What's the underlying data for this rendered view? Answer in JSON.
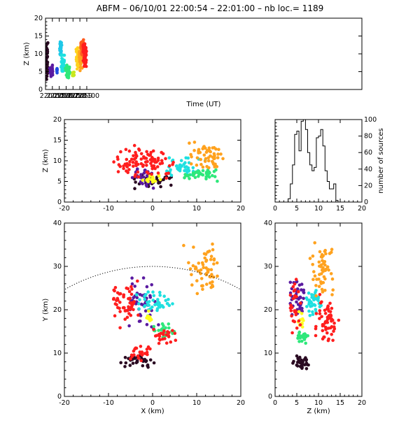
{
  "figure": {
    "title": "ABFM – 06/10/01 22:00:54 – 22:01:00 – nb loc.=    1189"
  },
  "chart_data": [
    {
      "id": "time_height",
      "type": "scatter",
      "xlabel": "Time (UT)",
      "ylabel": "Z (km)",
      "xlim": [
        220054.0,
        220100.0
      ],
      "ylim": [
        0,
        20
      ],
      "xticks": [
        220055,
        220056,
        220057,
        220058,
        220059,
        220100
      ],
      "xtick_labels": [
        "220055",
        "220056",
        "220057",
        "220058",
        "220059",
        "220100"
      ],
      "xtick_pos": [
        1,
        2,
        3,
        4,
        5,
        6
      ],
      "yticks": [
        0,
        5,
        10,
        15,
        20
      ],
      "color_by": "time",
      "colorscale": [
        "#1a0010",
        "#4b0082",
        "#0000ff",
        "#00bfff",
        "#00ffff",
        "#00ff7f",
        "#7cfc00",
        "#ffff00",
        "#ffa500",
        "#ff4500",
        "#ff0000"
      ],
      "clusters": [
        {
          "x": [
            0.0,
            0.38
          ],
          "y": [
            2,
            14
          ],
          "color": "#2a0a22",
          "n": 50
        },
        {
          "x": [
            0.6,
            1.1
          ],
          "y": [
            3.5,
            7
          ],
          "color": "#5a1aa0",
          "n": 35
        },
        {
          "x": [
            1.62,
            1.72
          ],
          "y": [
            4.5,
            6.5
          ],
          "color": "#1f4de0",
          "n": 8
        },
        {
          "x": [
            2.0,
            2.4
          ],
          "y": [
            9,
            14
          ],
          "color": "#1fc8e8",
          "n": 40
        },
        {
          "x": [
            2.2,
            2.8
          ],
          "y": [
            5,
            10
          ],
          "color": "#1ee0e0",
          "n": 40
        },
        {
          "x": [
            2.8,
            3.6
          ],
          "y": [
            3,
            7
          ],
          "color": "#2ee87a",
          "n": 45
        },
        {
          "x": [
            3.8,
            4.2
          ],
          "y": [
            3,
            6
          ],
          "color": "#c8e81e",
          "n": 10
        },
        {
          "x": [
            4.4,
            5.0
          ],
          "y": [
            5,
            12
          ],
          "color": "#ffd21e",
          "n": 45
        },
        {
          "x": [
            4.8,
            5.4
          ],
          "y": [
            5,
            13
          ],
          "color": "#ffa21e",
          "n": 45
        },
        {
          "x": [
            5.1,
            5.6
          ],
          "y": [
            9,
            15
          ],
          "color": "#ff5a1e",
          "n": 40
        },
        {
          "x": [
            5.4,
            6.0
          ],
          "y": [
            6,
            14
          ],
          "color": "#ff1e1e",
          "n": 60
        }
      ]
    },
    {
      "id": "x_height",
      "type": "scatter",
      "xlabel": "",
      "ylabel": "Z (km)",
      "xlim": [
        -20,
        20
      ],
      "ylim": [
        0,
        20
      ],
      "xticks": [
        -20,
        -10,
        0,
        10,
        20
      ],
      "yticks": [
        0,
        5,
        10,
        15,
        20
      ],
      "clusters": [
        {
          "x": [
            -6,
            6
          ],
          "y": [
            3,
            7
          ],
          "color": "#2a0a22",
          "n": 35
        },
        {
          "x": [
            -5,
            1
          ],
          "y": [
            3,
            9
          ],
          "color": "#5a1aa0",
          "n": 35
        },
        {
          "x": [
            -3,
            3
          ],
          "y": [
            4,
            7
          ],
          "color": "#ffff1e",
          "n": 15
        },
        {
          "x": [
            2,
            12
          ],
          "y": [
            6,
            11
          ],
          "color": "#1ee0e0",
          "n": 45
        },
        {
          "x": [
            6,
            16
          ],
          "y": [
            5,
            8
          ],
          "color": "#2ee87a",
          "n": 40
        },
        {
          "x": [
            8,
            17
          ],
          "y": [
            8,
            15
          ],
          "color": "#ffa21e",
          "n": 55
        },
        {
          "x": [
            -10,
            6
          ],
          "y": [
            5,
            14
          ],
          "color": "#ff1e1e",
          "n": 95
        }
      ]
    },
    {
      "id": "height_histogram",
      "type": "line",
      "xlabel": "",
      "ylabel": "number of sources",
      "xlim": [
        0,
        20
      ],
      "ylim": [
        0,
        100
      ],
      "xticks": [
        0,
        5,
        10,
        15,
        20
      ],
      "yticks": [
        0,
        20,
        40,
        60,
        80,
        100
      ],
      "bin_width": 0.5,
      "bin_start": 3.0,
      "values": [
        4,
        22,
        45,
        82,
        86,
        62,
        98,
        100,
        88,
        60,
        45,
        38,
        42,
        78,
        80,
        88,
        68,
        38,
        25,
        16,
        16,
        22,
        2,
        0
      ]
    },
    {
      "id": "plan_view",
      "type": "scatter",
      "xlabel": "X (km)",
      "ylabel": "Y (km)",
      "xlim": [
        -20,
        20
      ],
      "ylim": [
        0,
        40
      ],
      "xticks": [
        -20,
        -10,
        0,
        10,
        20
      ],
      "yticks": [
        0,
        10,
        20,
        30,
        40
      ],
      "range_ring": {
        "center_x": 0,
        "center_y": -10,
        "radius_km": 40
      },
      "clusters": [
        {
          "x": [
            -8,
            1
          ],
          "y": [
            6,
            10
          ],
          "color": "#2a0a22",
          "n": 35
        },
        {
          "x": [
            -6,
            2
          ],
          "y": [
            15,
            28
          ],
          "color": "#5a1aa0",
          "n": 45
        },
        {
          "x": [
            -4,
            5
          ],
          "y": [
            18,
            25
          ],
          "color": "#1ee0e0",
          "n": 45
        },
        {
          "x": [
            -2,
            0
          ],
          "y": [
            17,
            20
          ],
          "color": "#ffff1e",
          "n": 10
        },
        {
          "x": [
            0,
            5
          ],
          "y": [
            13,
            17
          ],
          "color": "#2ee87a",
          "n": 25
        },
        {
          "x": [
            7,
            16
          ],
          "y": [
            23,
            36
          ],
          "color": "#ffa21e",
          "n": 60
        },
        {
          "x": [
            -10,
            -3
          ],
          "y": [
            15,
            28
          ],
          "color": "#ff1e1e",
          "n": 55
        },
        {
          "x": [
            -6,
            0
          ],
          "y": [
            8,
            12
          ],
          "color": "#ff1e1e",
          "n": 25
        },
        {
          "x": [
            0,
            6
          ],
          "y": [
            12,
            16
          ],
          "color": "#ff1e1e",
          "n": 25
        }
      ]
    },
    {
      "id": "z_y_view",
      "type": "scatter",
      "xlabel": "Z (km)",
      "ylabel": "",
      "xlim": [
        0,
        20
      ],
      "ylim": [
        0,
        40
      ],
      "xticks": [
        0,
        5,
        10,
        15,
        20
      ],
      "yticks": [
        0,
        10,
        20,
        30,
        40
      ],
      "clusters": [
        {
          "x": [
            4,
            8
          ],
          "y": [
            6,
            10
          ],
          "color": "#2a0a22",
          "n": 35
        },
        {
          "x": [
            3,
            7
          ],
          "y": [
            18,
            28
          ],
          "color": "#5a1aa0",
          "n": 40
        },
        {
          "x": [
            7,
            11
          ],
          "y": [
            18,
            25
          ],
          "color": "#1ee0e0",
          "n": 40
        },
        {
          "x": [
            5,
            7
          ],
          "y": [
            15,
            20
          ],
          "color": "#ffff1e",
          "n": 10
        },
        {
          "x": [
            5,
            8
          ],
          "y": [
            12,
            16
          ],
          "color": "#2ee87a",
          "n": 20
        },
        {
          "x": [
            8,
            14
          ],
          "y": [
            22,
            36
          ],
          "color": "#ffa21e",
          "n": 55
        },
        {
          "x": [
            9,
            15
          ],
          "y": [
            12,
            24
          ],
          "color": "#ff1e1e",
          "n": 60
        },
        {
          "x": [
            3,
            6
          ],
          "y": [
            10,
            28
          ],
          "color": "#ff1e1e",
          "n": 30
        }
      ]
    }
  ]
}
